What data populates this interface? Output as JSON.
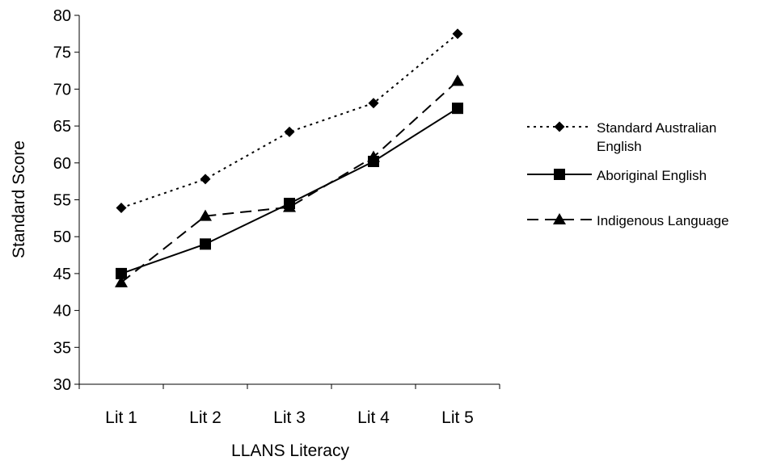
{
  "chart_data": {
    "type": "line",
    "title": "",
    "xlabel": "LLANS Literacy",
    "ylabel": "Standard Score",
    "categories": [
      "Lit 1",
      "Lit 2",
      "Lit 3",
      "Lit 4",
      "Lit 5"
    ],
    "ylim": [
      30,
      80
    ],
    "yticks": [
      "30",
      "35",
      "40",
      "45",
      "50",
      "55",
      "60",
      "65",
      "70",
      "75",
      "80"
    ],
    "grid": false,
    "legend_position": "right",
    "series": [
      {
        "name": "Standard Australian English",
        "name_lines": [
          "Standard Australian",
          "English"
        ],
        "values": [
          53.9,
          57.8,
          64.2,
          68.1,
          77.5
        ],
        "marker": "diamond",
        "dash": "dotted",
        "color": "#000000"
      },
      {
        "name": "Aboriginal English",
        "name_lines": [
          "Aboriginal English"
        ],
        "values": [
          45.0,
          49.0,
          54.5,
          60.2,
          67.4
        ],
        "marker": "square",
        "dash": "solid",
        "color": "#000000"
      },
      {
        "name": "Indigenous Language",
        "name_lines": [
          "Indigenous Language"
        ],
        "values": [
          43.8,
          52.8,
          54.0,
          60.8,
          71.1
        ],
        "marker": "triangle",
        "dash": "dashed",
        "color": "#000000"
      }
    ]
  }
}
